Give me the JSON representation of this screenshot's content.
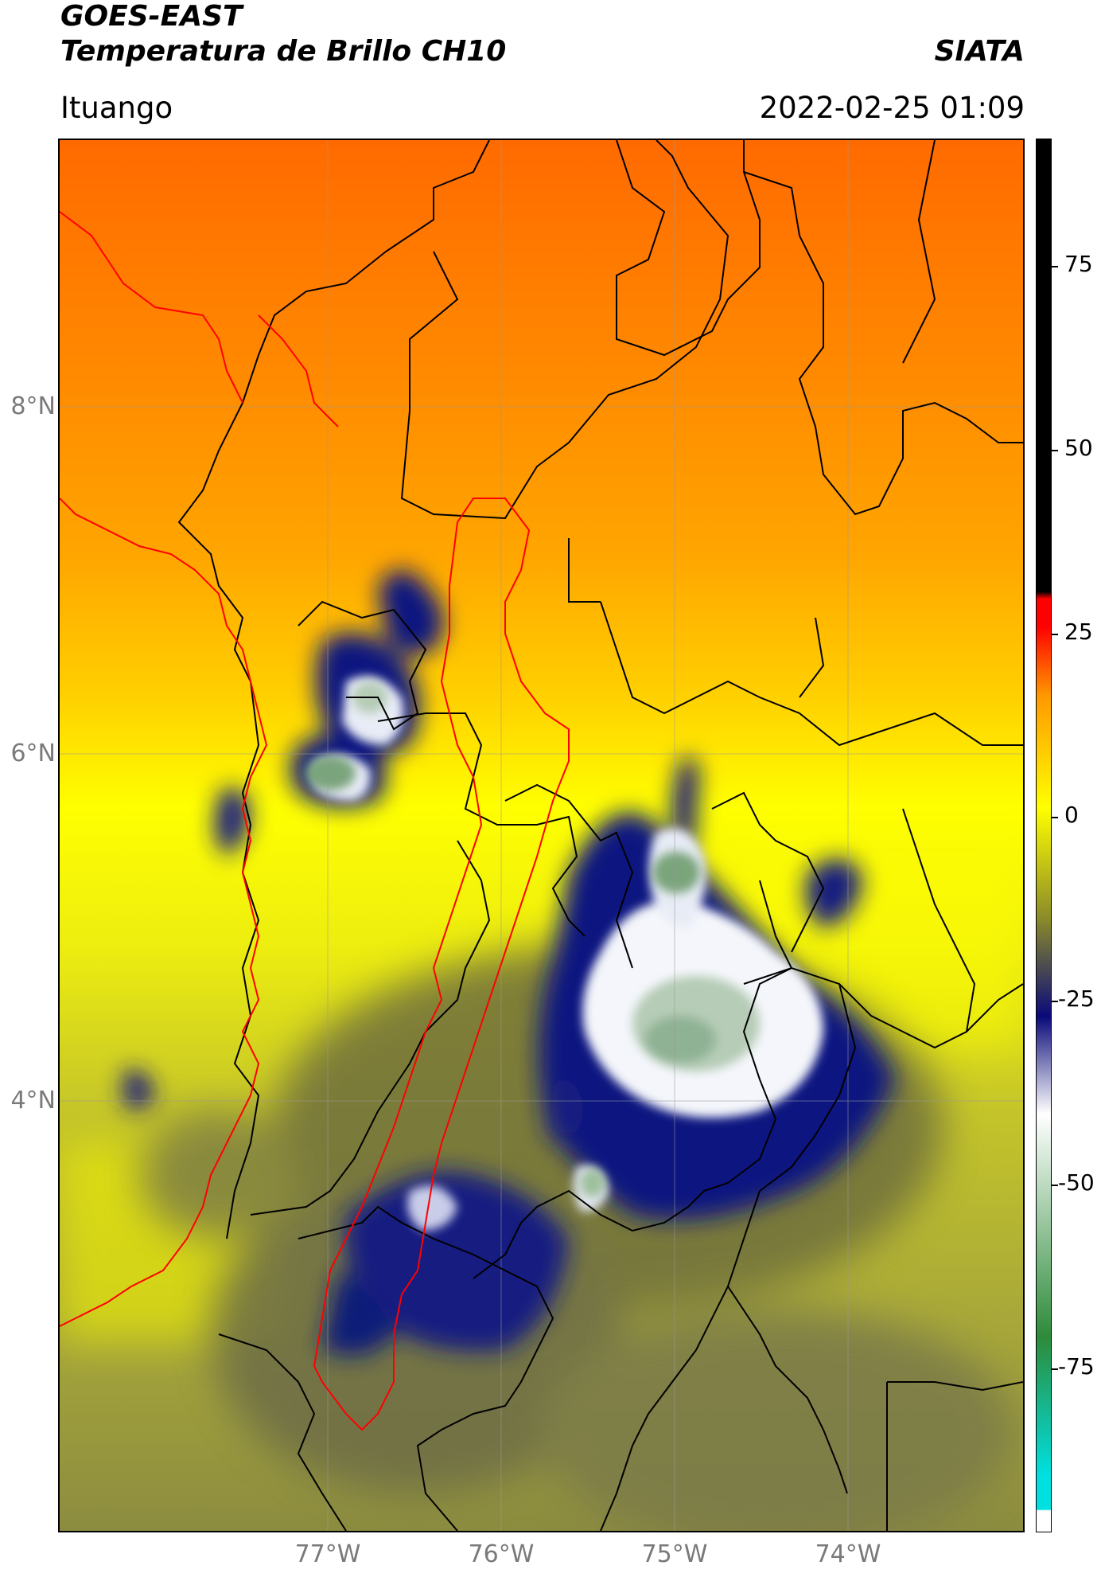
{
  "header": {
    "satellite": "GOES-EAST",
    "product": "Temperatura de Brillo CH10",
    "agency": "SIATA",
    "location": "Ituango",
    "datetime": "2022-02-25 01:09"
  },
  "map": {
    "lat_labels": [
      "8°N",
      "6°N",
      "4°N"
    ],
    "lon_labels": [
      "77°W",
      "76°W",
      "75°W",
      "74°W"
    ],
    "gridline_color": "#9a9a9a",
    "border_color": "#000000",
    "highlight_border_color": "#ff0000"
  },
  "colorbar": {
    "ticks": [
      "75",
      "50",
      "25",
      "0",
      "-25",
      "-50",
      "-75"
    ],
    "colors": {
      "cyan": "#00e0e0",
      "green": "#2e8b3a",
      "white": "#ffffff",
      "navy": "#0a0a7a",
      "olive": "#8a8a2a",
      "yellow": "#ffff00",
      "orange": "#ff9900",
      "red": "#ff0000",
      "black": "#000000"
    }
  }
}
